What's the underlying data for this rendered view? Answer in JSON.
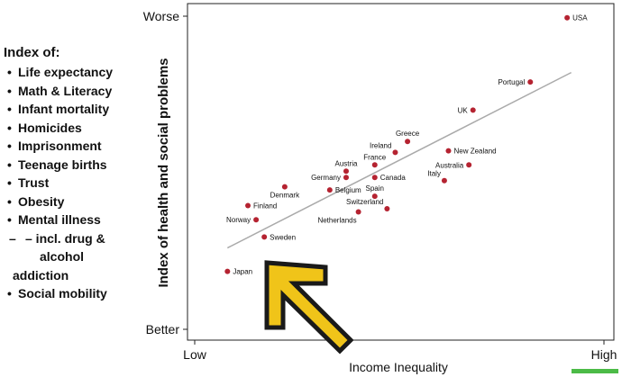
{
  "legend_panel": {
    "heading": "Index of:",
    "items": [
      {
        "text": "Life expectancy",
        "style": "bullet"
      },
      {
        "text": "Math & Literacy",
        "style": "bullet"
      },
      {
        "text": "Infant mortality",
        "style": "bullet"
      },
      {
        "text": "Homicides",
        "style": "bullet"
      },
      {
        "text": "Imprisonment",
        "style": "bullet"
      },
      {
        "text": "Teenage births",
        "style": "bullet"
      },
      {
        "text": "Trust",
        "style": "bullet"
      },
      {
        "text": "Obesity",
        "style": "bullet"
      },
      {
        "text": "Mental illness",
        "style": "bullet"
      },
      {
        "text": "– incl. drug &",
        "style": "dash"
      },
      {
        "text": "alcohol",
        "style": "deep"
      },
      {
        "text": "addiction",
        "style": "cont"
      },
      {
        "text": "Social mobility",
        "style": "bullet"
      }
    ]
  },
  "chart_data": {
    "type": "scatter",
    "xlabel": "Income Inequality",
    "ylabel": "Index of health and social problems",
    "x_tick_labels": [
      "Low",
      "High"
    ],
    "y_tick_labels": [
      "Worse",
      "Better"
    ],
    "xlim": [
      0,
      100
    ],
    "ylim": [
      0,
      100
    ],
    "grid": false,
    "marker_color": "#b52331",
    "trend_line": {
      "color": "#aaaaaa",
      "from": [
        8,
        26
      ],
      "to": [
        92,
        82
      ]
    },
    "points": [
      {
        "label": "USA",
        "x": 91,
        "y": 99.5,
        "label_side": "right"
      },
      {
        "label": "Portugal",
        "x": 82,
        "y": 79,
        "label_side": "left"
      },
      {
        "label": "UK",
        "x": 68,
        "y": 70,
        "label_side": "left"
      },
      {
        "label": "Greece",
        "x": 52,
        "y": 60,
        "label_side": "above"
      },
      {
        "label": "New Zealand",
        "x": 62,
        "y": 57,
        "label_side": "right"
      },
      {
        "label": "Ireland",
        "x": 49,
        "y": 56.5,
        "label_side": "aboveleft"
      },
      {
        "label": "France",
        "x": 44,
        "y": 52.5,
        "label_side": "above"
      },
      {
        "label": "Austria",
        "x": 37,
        "y": 50.5,
        "label_side": "above"
      },
      {
        "label": "Australia",
        "x": 67,
        "y": 52.5,
        "label_side": "left"
      },
      {
        "label": "Germany",
        "x": 37,
        "y": 48.5,
        "label_side": "left"
      },
      {
        "label": "Canada",
        "x": 44,
        "y": 48.5,
        "label_side": "right"
      },
      {
        "label": "Italy",
        "x": 61,
        "y": 47.5,
        "label_side": "aboveleft"
      },
      {
        "label": "Denmark",
        "x": 22,
        "y": 45.5,
        "label_side": "below"
      },
      {
        "label": "Belgium",
        "x": 33,
        "y": 44.5,
        "label_side": "right"
      },
      {
        "label": "Spain",
        "x": 44,
        "y": 42.5,
        "label_side": "above"
      },
      {
        "label": "Finland",
        "x": 13,
        "y": 39.5,
        "label_side": "right"
      },
      {
        "label": "Switzerland",
        "x": 47,
        "y": 38.5,
        "label_side": "aboveleft"
      },
      {
        "label": "Netherlands",
        "x": 40,
        "y": 37.5,
        "label_side": "belowleft"
      },
      {
        "label": "Norway",
        "x": 15,
        "y": 35,
        "label_side": "left"
      },
      {
        "label": "Sweden",
        "x": 17,
        "y": 29.5,
        "label_side": "right"
      },
      {
        "label": "Japan",
        "x": 8,
        "y": 18.5,
        "label_side": "right"
      }
    ]
  },
  "overlay": {
    "arrow_color": "#f0c419",
    "arrow_stroke": "#1a1a1a",
    "bar_color": "#4cbb47"
  }
}
